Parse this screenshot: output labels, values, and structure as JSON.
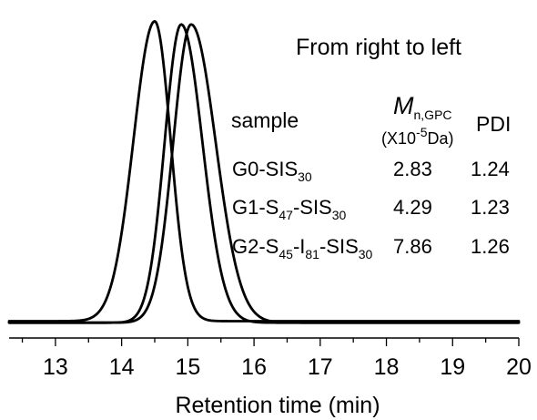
{
  "chart_data": {
    "type": "line",
    "xlabel": "Retention time (min)",
    "ylabel": "",
    "xlim": [
      12.3,
      20.0
    ],
    "ylim": [
      0,
      1.0
    ],
    "x_ticks": [
      "13",
      "14",
      "15",
      "16",
      "17",
      "18",
      "19",
      "20"
    ],
    "x_tick_values": [
      13,
      14,
      15,
      16,
      17,
      18,
      19,
      20
    ],
    "x_minor_step": 0.5,
    "y_ticks_shown": false,
    "grid": false,
    "series": [
      {
        "id": "G2",
        "peak_x": 14.5,
        "peak_height": 0.99,
        "left_width": 0.32,
        "right_width": 0.24,
        "baseline": 0.025
      },
      {
        "id": "G1",
        "peak_x": 14.9,
        "peak_height": 0.98,
        "left_width": 0.25,
        "right_width": 0.32,
        "baseline": 0.02
      },
      {
        "id": "G0",
        "peak_x": 15.05,
        "peak_height": 0.98,
        "left_width": 0.27,
        "right_width": 0.37,
        "baseline": 0.02
      }
    ],
    "annotation": {
      "title": "From right to left",
      "header": {
        "sample": "sample",
        "mn_symbol": "M",
        "mn_sub": "n,GPC",
        "mn_unit_pre": "(X10",
        "mn_unit_sup": "-5",
        "mn_unit_post": "Da)",
        "pdi": "PDI"
      },
      "rows": [
        {
          "sample_parts": [
            [
              "G0-SIS",
              ""
            ],
            [
              "30",
              "sub"
            ]
          ],
          "mn": "2.83",
          "pdi": "1.24"
        },
        {
          "sample_parts": [
            [
              "G1-S",
              ""
            ],
            [
              "47",
              "sub"
            ],
            [
              "-SIS",
              ""
            ],
            [
              "30",
              "sub"
            ]
          ],
          "mn": "4.29",
          "pdi": "1.23"
        },
        {
          "sample_parts": [
            [
              "G2-S",
              ""
            ],
            [
              "45",
              "sub"
            ],
            [
              "-I",
              ""
            ],
            [
              "81",
              "sub"
            ],
            [
              "-SIS",
              ""
            ],
            [
              "30",
              "sub"
            ]
          ],
          "mn": "7.86",
          "pdi": "1.26"
        }
      ]
    }
  }
}
